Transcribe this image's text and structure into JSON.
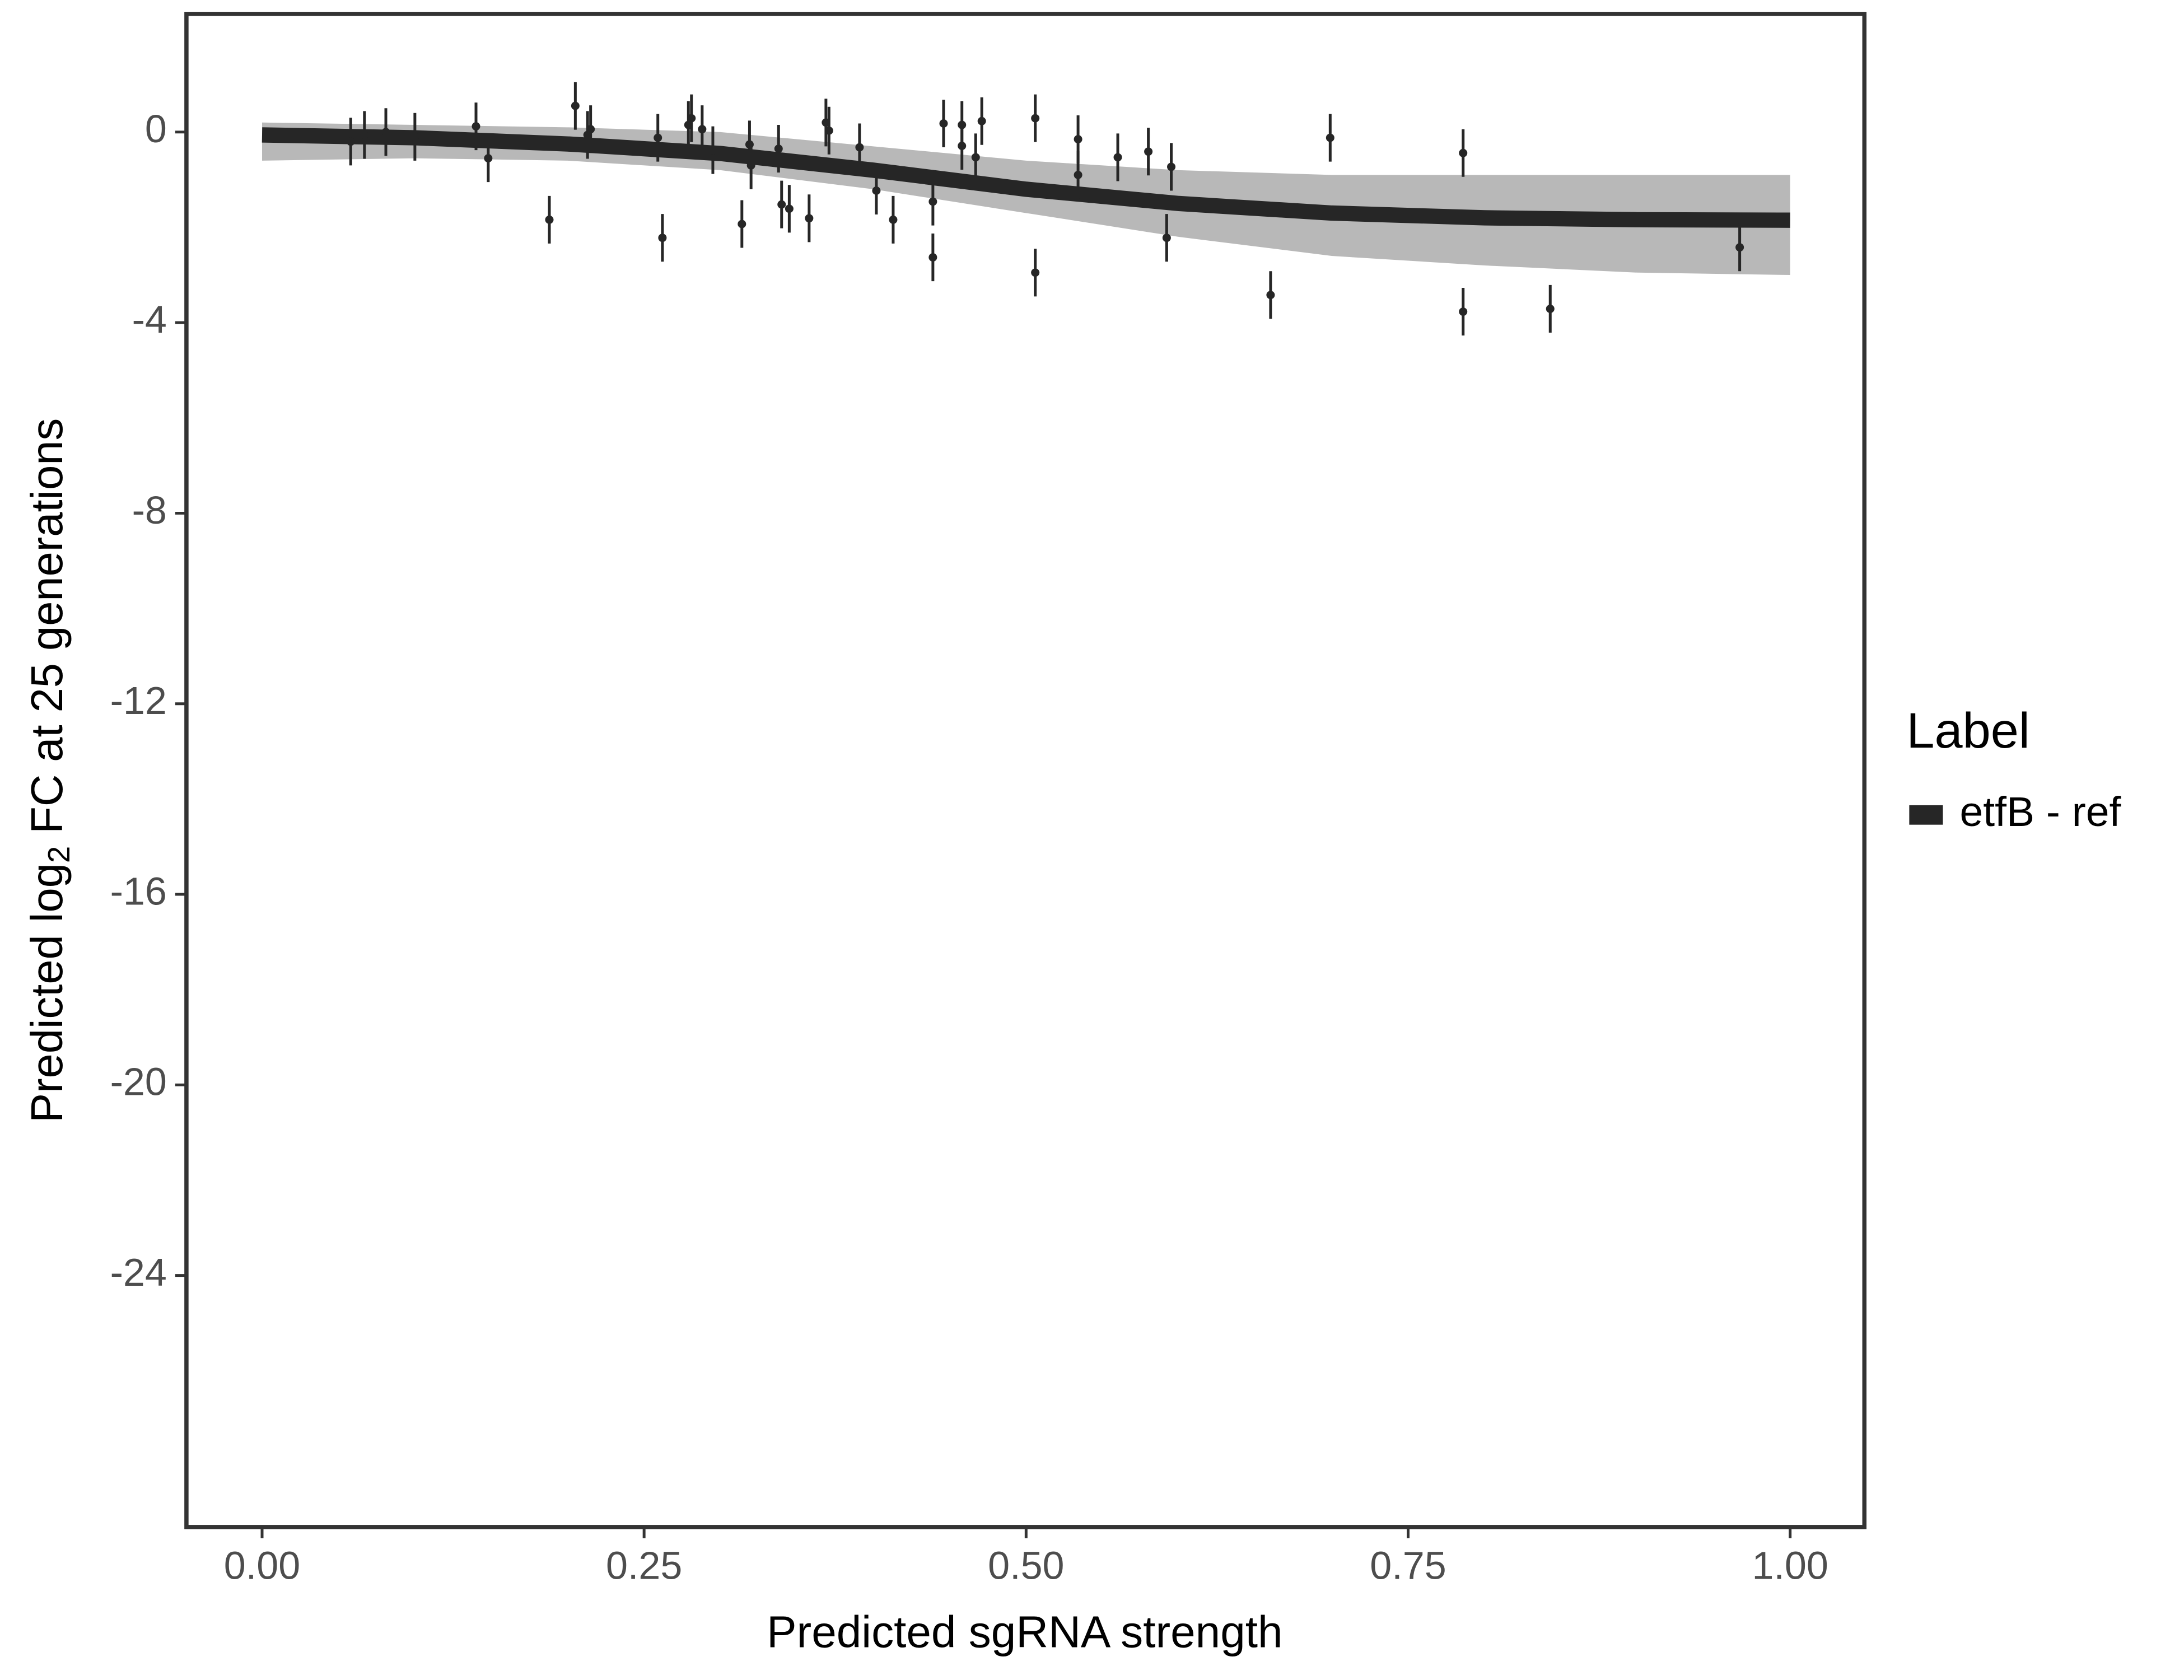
{
  "chart_data": {
    "type": "line",
    "x_label": "Predicted sgRNA strength",
    "y_label": {
      "prefix": "Predicted  log",
      "subscript": "2",
      "suffix": " FC at 25 generations"
    },
    "xlim": [
      -0.0495,
      1.0486
    ],
    "ylim": [
      -29.28,
      2.48
    ],
    "xticks": [
      {
        "value": 0,
        "label": "0.00"
      },
      0.25,
      {
        "value": 0.5,
        "label": "0.50"
      },
      0.75,
      {
        "value": 1,
        "label": "1.00"
      }
    ],
    "yticks": [
      0,
      -4,
      -8,
      -12,
      -16,
      -20,
      -24
    ],
    "grid": false,
    "legend_title": "Label",
    "legend_position": "right",
    "series": [
      {
        "name": "etfB - ref",
        "color": "#262626",
        "band_color": "#a6a6a6",
        "x": [
          0,
          0.1,
          0.2,
          0.3,
          0.4,
          0.5,
          0.6,
          0.7,
          0.8,
          0.9,
          1.0
        ],
        "values": [
          -0.06,
          -0.12,
          -0.25,
          -0.45,
          -0.8,
          -1.2,
          -1.5,
          -1.7,
          -1.8,
          -1.84,
          -1.85
        ],
        "band_upper": [
          0.2,
          0.15,
          0.1,
          0,
          -0.3,
          -0.6,
          -0.8,
          -0.9,
          -0.9,
          -0.9,
          -0.9
        ],
        "band_lower": [
          -0.6,
          -0.55,
          -0.6,
          -0.8,
          -1.2,
          -1.7,
          -2.2,
          -2.6,
          -2.8,
          -2.95,
          -3.0
        ]
      }
    ],
    "points": {
      "color": "#262626",
      "x": [
        0.058,
        0.067,
        0.081,
        0.1,
        0.14,
        0.148,
        0.188,
        0.205,
        0.213,
        0.215,
        0.259,
        0.262,
        0.279,
        0.281,
        0.288,
        0.295,
        0.314,
        0.319,
        0.32,
        0.338,
        0.34,
        0.345,
        0.358,
        0.369,
        0.371,
        0.391,
        0.402,
        0.413,
        0.439,
        0.439,
        0.446,
        0.458,
        0.458,
        0.467,
        0.471,
        0.506,
        0.506,
        0.534,
        0.534,
        0.56,
        0.58,
        0.592,
        0.595,
        0.66,
        0.699,
        0.786,
        0.786,
        0.843,
        0.967
      ],
      "y": [
        -0.2,
        -0.06,
        0,
        -0.1,
        0.12,
        -0.55,
        -1.84,
        0.55,
        -0.06,
        0.06,
        -0.12,
        -2.22,
        0.15,
        0.29,
        0.06,
        -0.38,
        -1.93,
        -0.26,
        -0.7,
        -0.35,
        -1.52,
        -1.61,
        -1.81,
        0.2,
        0.03,
        -0.32,
        -1.23,
        -1.84,
        -1.46,
        -2.63,
        0.18,
        0.15,
        -0.29,
        -0.53,
        0.23,
        0.29,
        -2.95,
        -0.15,
        -0.9,
        -0.53,
        -0.41,
        -2.22,
        -0.73,
        -3.42,
        -0.12,
        -3.77,
        -0.44,
        -3.71,
        -2.42
      ],
      "error": [
        0.5,
        0.5,
        0.5,
        0.5,
        0.5,
        0.5,
        0.5,
        0.5,
        0.5,
        0.5,
        0.5,
        0.5,
        0.5,
        0.5,
        0.5,
        0.5,
        0.5,
        0.5,
        0.5,
        0.5,
        0.5,
        0.5,
        0.5,
        0.5,
        0.5,
        0.5,
        0.5,
        0.5,
        0.5,
        0.5,
        0.5,
        0.5,
        0.5,
        0.5,
        0.5,
        0.5,
        0.5,
        0.5,
        0.5,
        0.5,
        0.5,
        0.5,
        0.5,
        0.5,
        0.5,
        0.5,
        0.5,
        0.5,
        0.5
      ]
    }
  }
}
